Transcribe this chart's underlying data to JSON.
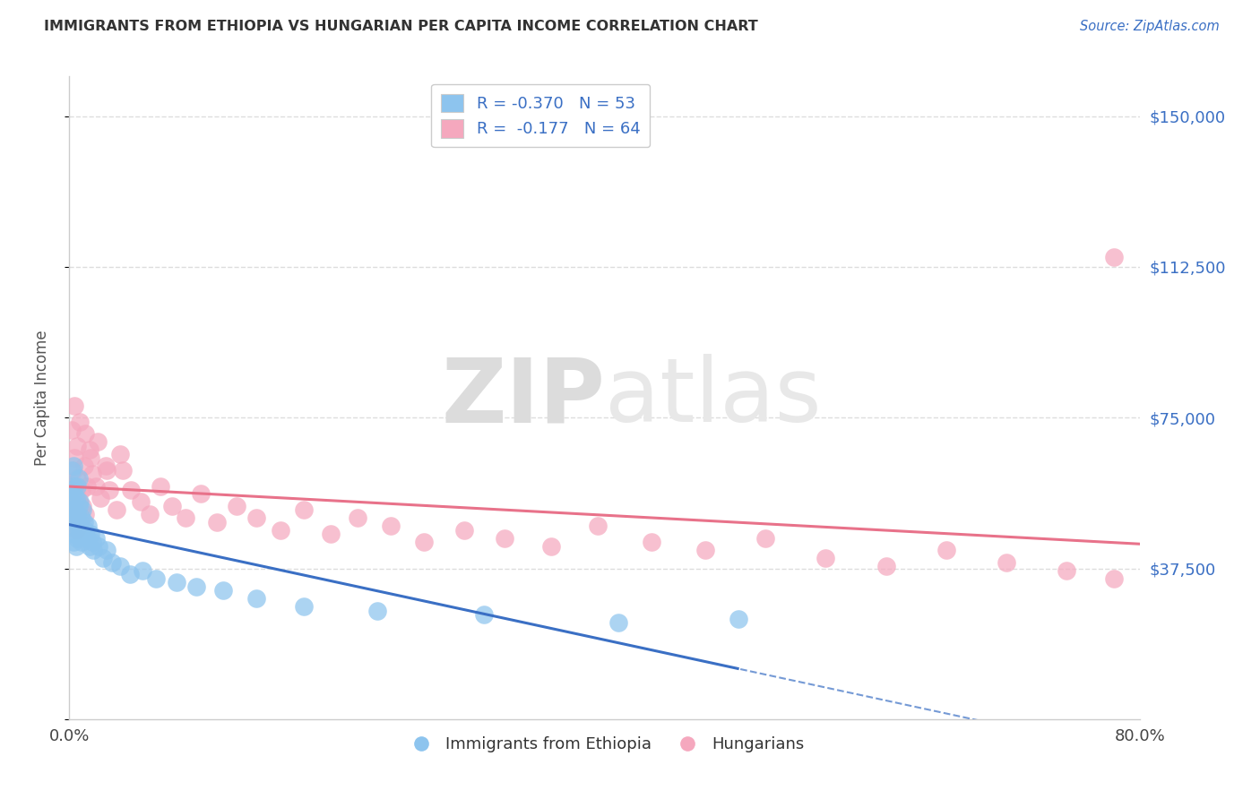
{
  "title": "IMMIGRANTS FROM ETHIOPIA VS HUNGARIAN PER CAPITA INCOME CORRELATION CHART",
  "source": "Source: ZipAtlas.com",
  "ylabel": "Per Capita Income",
  "yticks": [
    0,
    37500,
    75000,
    112500,
    150000
  ],
  "ytick_labels": [
    "",
    "$37,500",
    "$75,000",
    "$112,500",
    "$150,000"
  ],
  "legend_label1": "Immigrants from Ethiopia",
  "legend_label2": "Hungarians",
  "legend_R1": "R = -0.370",
  "legend_N1": "N = 53",
  "legend_R2": "R =  -0.177",
  "legend_N2": "N = 64",
  "color_blue": "#8DC4EE",
  "color_pink": "#F5A8BE",
  "color_blue_line": "#3A6FC4",
  "color_pink_line": "#E8728A",
  "color_blue_text": "#3A6FC4",
  "background_color": "#FFFFFF",
  "watermark_color": "#E2E2E2",
  "title_color": "#333333",
  "axis_color": "#CCCCCC",
  "grid_color": "#DDDDDD",
  "xmin": 0.0,
  "xmax": 0.8,
  "ymin": 0,
  "ymax": 160000,
  "blue_x": [
    0.001,
    0.001,
    0.002,
    0.002,
    0.002,
    0.003,
    0.003,
    0.003,
    0.003,
    0.004,
    0.004,
    0.004,
    0.005,
    0.005,
    0.005,
    0.006,
    0.006,
    0.006,
    0.007,
    0.007,
    0.007,
    0.008,
    0.008,
    0.009,
    0.009,
    0.01,
    0.01,
    0.011,
    0.012,
    0.013,
    0.014,
    0.015,
    0.016,
    0.017,
    0.018,
    0.02,
    0.022,
    0.025,
    0.028,
    0.032,
    0.038,
    0.045,
    0.055,
    0.065,
    0.08,
    0.095,
    0.115,
    0.14,
    0.175,
    0.23,
    0.31,
    0.41,
    0.5
  ],
  "blue_y": [
    52000,
    57000,
    48000,
    54000,
    62000,
    44000,
    50000,
    56000,
    63000,
    46000,
    52000,
    58000,
    43000,
    49000,
    55000,
    45000,
    51000,
    58000,
    47000,
    53000,
    60000,
    48000,
    54000,
    44000,
    50000,
    46000,
    52000,
    49000,
    47000,
    45000,
    48000,
    43000,
    46000,
    44000,
    42000,
    45000,
    43000,
    40000,
    42000,
    39000,
    38000,
    36000,
    37000,
    35000,
    34000,
    33000,
    32000,
    30000,
    28000,
    27000,
    26000,
    24000,
    25000
  ],
  "pink_x": [
    0.001,
    0.002,
    0.003,
    0.003,
    0.004,
    0.004,
    0.005,
    0.005,
    0.006,
    0.006,
    0.007,
    0.008,
    0.009,
    0.01,
    0.011,
    0.012,
    0.013,
    0.015,
    0.017,
    0.02,
    0.023,
    0.027,
    0.03,
    0.035,
    0.04,
    0.046,
    0.053,
    0.06,
    0.068,
    0.077,
    0.087,
    0.098,
    0.11,
    0.125,
    0.14,
    0.158,
    0.175,
    0.195,
    0.215,
    0.24,
    0.265,
    0.295,
    0.325,
    0.36,
    0.395,
    0.435,
    0.475,
    0.52,
    0.565,
    0.61,
    0.655,
    0.7,
    0.745,
    0.78,
    0.002,
    0.004,
    0.006,
    0.008,
    0.012,
    0.016,
    0.021,
    0.028,
    0.038,
    0.78
  ],
  "pink_y": [
    55000,
    58000,
    50000,
    62000,
    53000,
    65000,
    47000,
    56000,
    52000,
    60000,
    54000,
    49000,
    57000,
    53000,
    63000,
    51000,
    58000,
    67000,
    61000,
    58000,
    55000,
    63000,
    57000,
    52000,
    62000,
    57000,
    54000,
    51000,
    58000,
    53000,
    50000,
    56000,
    49000,
    53000,
    50000,
    47000,
    52000,
    46000,
    50000,
    48000,
    44000,
    47000,
    45000,
    43000,
    48000,
    44000,
    42000,
    45000,
    40000,
    38000,
    42000,
    39000,
    37000,
    35000,
    72000,
    78000,
    68000,
    74000,
    71000,
    65000,
    69000,
    62000,
    66000,
    115000
  ]
}
